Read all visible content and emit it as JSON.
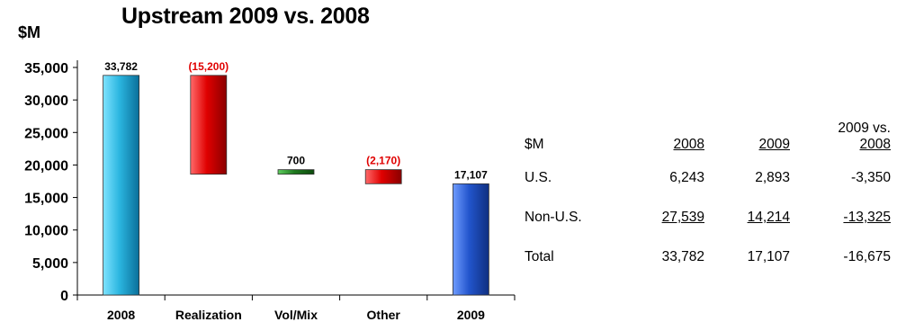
{
  "chart_data": {
    "type": "waterfall",
    "title": "Upstream 2009 vs. 2008",
    "ylabel": "$M",
    "ylim": [
      0,
      35000
    ],
    "yticks": [
      "0",
      "5,000",
      "10,000",
      "15,000",
      "20,000",
      "25,000",
      "30,000",
      "35,000"
    ],
    "ytick_values": [
      0,
      5000,
      10000,
      15000,
      20000,
      25000,
      30000,
      35000
    ],
    "grid": false,
    "categories": [
      "2008",
      "Realization",
      "Vol/Mix",
      "Other",
      "2009"
    ],
    "bars": [
      {
        "category": "2008",
        "start": 0,
        "end": 33782,
        "label": "33,782",
        "kind": "total",
        "color": "#2bb6e0",
        "label_color": "#000000"
      },
      {
        "category": "Realization",
        "start": 33782,
        "end": 18582,
        "label": "(15,200)",
        "kind": "decrease",
        "color": "#e00000",
        "label_color": "#e00000"
      },
      {
        "category": "Vol/Mix",
        "start": 18582,
        "end": 19282,
        "label": "700",
        "kind": "increase",
        "color": "#1f7a1f",
        "label_color": "#000000"
      },
      {
        "category": "Other",
        "start": 19282,
        "end": 17112,
        "label": "(2,170)",
        "kind": "decrease",
        "color": "#e00000",
        "label_color": "#e00000"
      },
      {
        "category": "2009",
        "start": 0,
        "end": 17107,
        "label": "17,107",
        "kind": "total",
        "color": "#2255cc",
        "label_color": "#000000"
      }
    ]
  },
  "table": {
    "corner": "$M",
    "headers": [
      {
        "lines": [
          "2008"
        ]
      },
      {
        "lines": [
          "2009"
        ]
      },
      {
        "lines": [
          "2009 vs.",
          "2008"
        ]
      }
    ],
    "rows": [
      {
        "label": "U.S.",
        "values": [
          "6,243",
          "2,893",
          "-3,350"
        ],
        "underline": false
      },
      {
        "label": "Non-U.S.",
        "values": [
          "27,539",
          "14,214",
          "-13,325"
        ],
        "underline": true
      },
      {
        "label": "Total",
        "values": [
          "33,782",
          "17,107",
          "-16,675"
        ],
        "underline": false
      }
    ]
  }
}
